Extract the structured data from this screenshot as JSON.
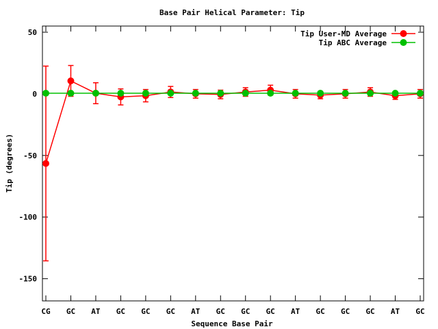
{
  "chart_data": {
    "type": "line",
    "title": "Base Pair Helical Parameter: Tip",
    "xlabel": "Sequence Base Pair",
    "ylabel": "Tip (degrees)",
    "categories": [
      "CG",
      "GC",
      "AT",
      "GC",
      "GC",
      "GC",
      "AT",
      "GC",
      "GC",
      "GC",
      "AT",
      "GC",
      "GC",
      "GC",
      "AT",
      "GC"
    ],
    "ylim": [
      -168,
      55
    ],
    "yticks": [
      50,
      0,
      -50,
      -100,
      -150
    ],
    "grid": false,
    "legend_position": "top-right",
    "series": [
      {
        "name": "Tip User-MD Average",
        "color": "#ff0000",
        "values": [
          -56.5,
          10.5,
          0.5,
          -2.5,
          -1.5,
          1.5,
          0,
          -0.5,
          1.5,
          3,
          0,
          -1,
          0,
          1.5,
          -1.5,
          0
        ],
        "errors": [
          79,
          12.5,
          8.5,
          6.5,
          5,
          4.5,
          3.5,
          3.5,
          3.5,
          4,
          3.5,
          3,
          3.5,
          3.5,
          3,
          3.5
        ]
      },
      {
        "name": "Tip ABC Average",
        "color": "#00c000",
        "values": [
          0.5,
          0.5,
          0.5,
          0.5,
          0.5,
          0.5,
          0.5,
          0.5,
          0.5,
          0.5,
          0.5,
          0.5,
          0.5,
          0.5,
          0.5,
          0.5
        ]
      }
    ]
  }
}
